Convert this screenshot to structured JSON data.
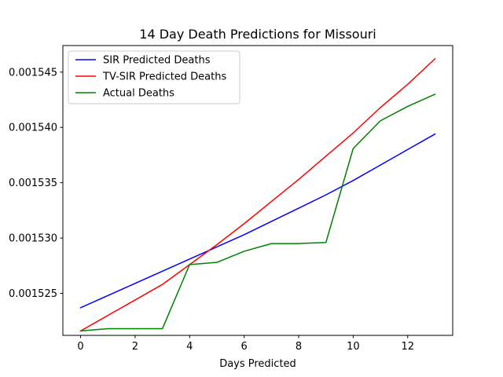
{
  "chart_data": {
    "type": "line",
    "title": "14 Day Death Predictions for Missouri",
    "xlabel": "Days Predicted",
    "ylabel": "",
    "x": [
      0,
      1,
      2,
      3,
      4,
      5,
      6,
      7,
      8,
      9,
      10,
      11,
      12,
      13
    ],
    "xlim": [
      -0.65,
      13.65
    ],
    "ylim": [
      0.0015212,
      0.0015474
    ],
    "xticks": [
      0,
      2,
      4,
      6,
      8,
      10,
      12
    ],
    "xtick_labels": [
      "0",
      "2",
      "4",
      "6",
      "8",
      "10",
      "12"
    ],
    "yticks": [
      0.001525,
      0.00153,
      0.001535,
      0.00154,
      0.001545
    ],
    "ytick_labels": [
      "0.001525",
      "0.001530",
      "0.001535",
      "0.001540",
      "0.001545"
    ],
    "grid": false,
    "legend_position": "top-left",
    "series": [
      {
        "name": "SIR Predicted Deaths",
        "color": "#0000ff",
        "values": [
          0.0015237,
          0.0015248,
          0.0015259,
          0.001527,
          0.0015281,
          0.0015292,
          0.0015303,
          0.0015315,
          0.0015327,
          0.0015339,
          0.0015352,
          0.0015366,
          0.001538,
          0.0015394
        ]
      },
      {
        "name": "TV-SIR Predicted Deaths",
        "color": "#ff0000",
        "values": [
          0.0015216,
          0.001523,
          0.0015244,
          0.0015258,
          0.0015276,
          0.0015294,
          0.0015313,
          0.0015333,
          0.0015353,
          0.0015374,
          0.0015395,
          0.0015418,
          0.0015439,
          0.0015462
        ]
      },
      {
        "name": "Actual Deaths",
        "color": "#008000",
        "values": [
          0.0015216,
          0.0015218,
          0.0015218,
          0.0015218,
          0.0015276,
          0.0015278,
          0.0015288,
          0.0015295,
          0.0015295,
          0.0015296,
          0.0015381,
          0.0015406,
          0.0015419,
          0.001543
        ]
      }
    ]
  }
}
